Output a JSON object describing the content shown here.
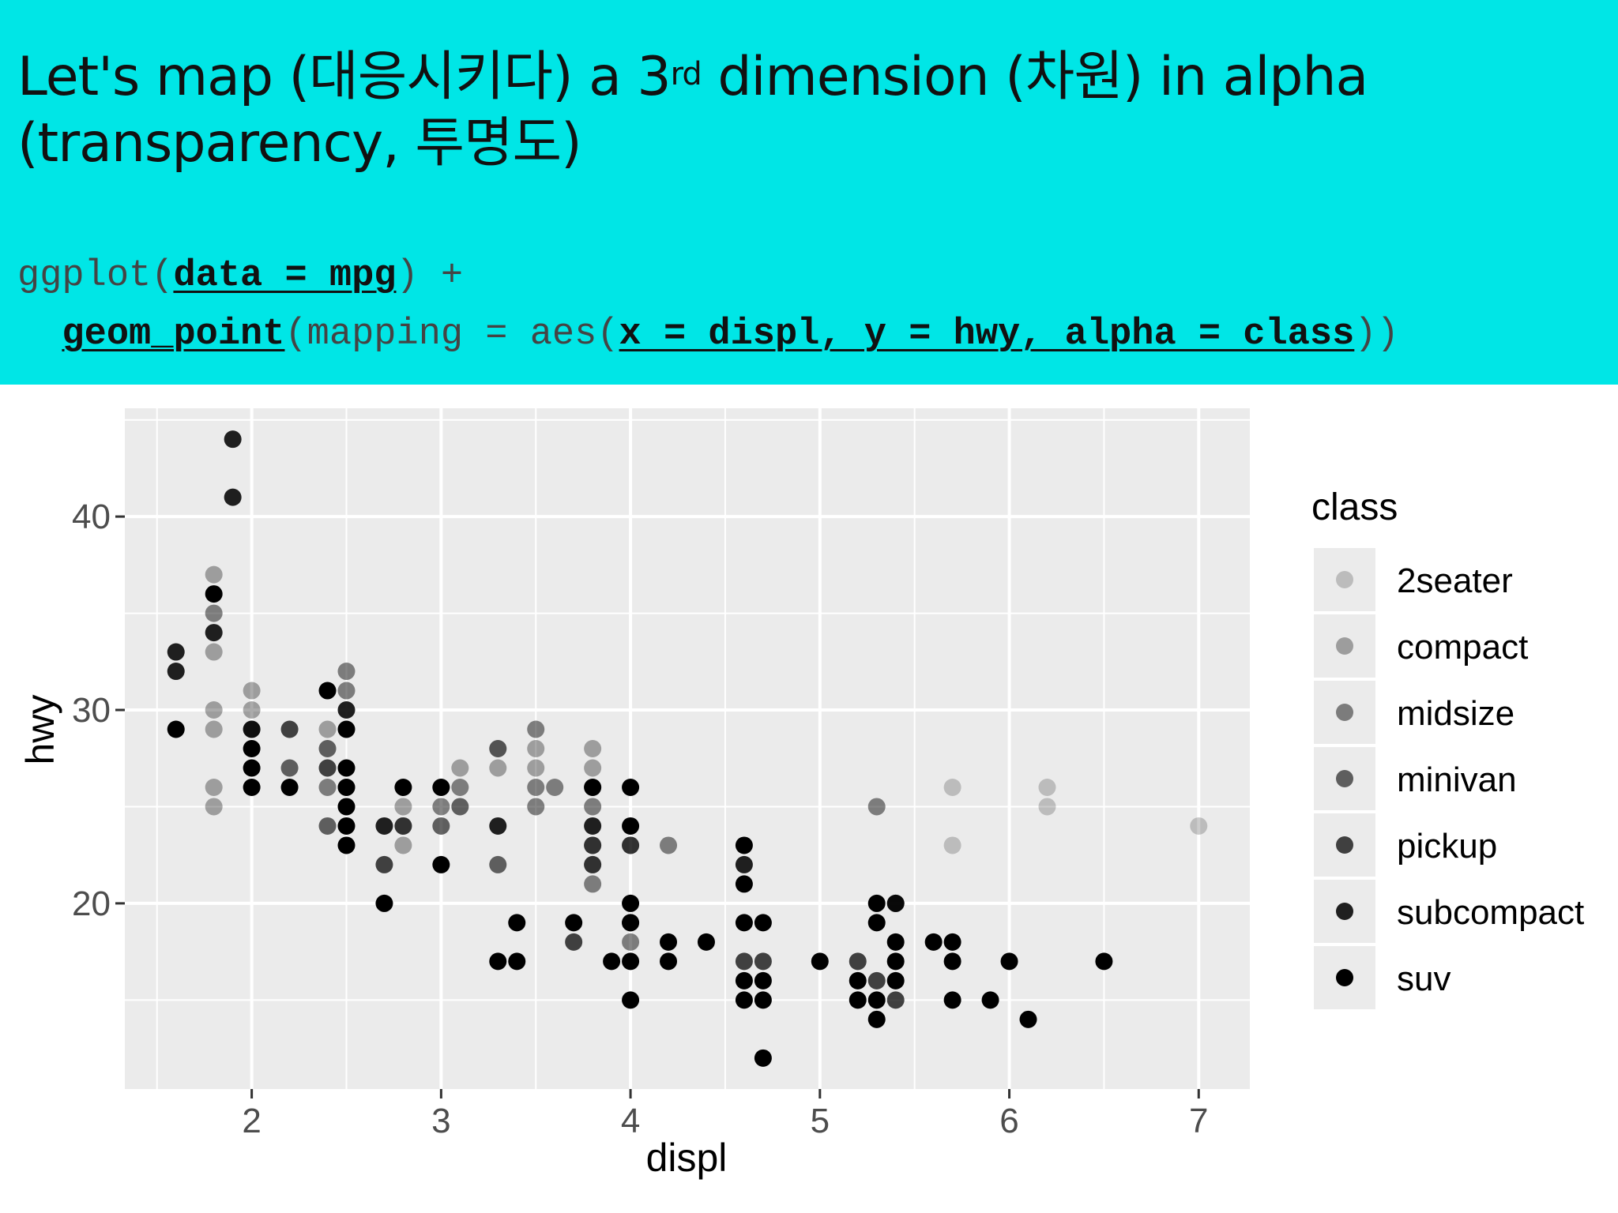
{
  "slide": {
    "title_line1_before_sup": "Let's map (대응시키다) a 3",
    "title_sup": "rd",
    "title_line1_after_sup": " dimension (차원) in alpha",
    "title_line2": "(transparency, 투명도)",
    "code_line1": [
      {
        "t": "ggplot(",
        "b": false
      },
      {
        "t": "data = mpg",
        "b": true
      },
      {
        "t": ") +",
        "b": false
      }
    ],
    "code_line2": [
      {
        "t": "  ",
        "b": false
      },
      {
        "t": "geom_point",
        "b": true
      },
      {
        "t": "(mapping = aes(",
        "b": false
      },
      {
        "t": "x = displ, y = hwy, alpha = class",
        "b": true
      },
      {
        "t": "))",
        "b": false
      }
    ]
  },
  "colors": {
    "header_bg": "#00e6e6",
    "panel_bg": "#ebebeb",
    "grid": "#ffffff",
    "point": "#000000",
    "axis_text": "#4d4d4d"
  },
  "chart_data": {
    "type": "scatter",
    "xlabel": "displ",
    "ylabel": "hwy",
    "xlim": [
      1.33,
      7.27
    ],
    "ylim": [
      10.4,
      45.6
    ],
    "xticks": [
      2,
      3,
      4,
      5,
      6,
      7
    ],
    "yticks": [
      20,
      30,
      40
    ],
    "grid": true,
    "legend": {
      "title": "class",
      "position": "right",
      "entries": [
        {
          "name": "2seater",
          "alpha": 0.2
        },
        {
          "name": "compact",
          "alpha": 0.33
        },
        {
          "name": "midsize",
          "alpha": 0.47
        },
        {
          "name": "minivan",
          "alpha": 0.6
        },
        {
          "name": "pickup",
          "alpha": 0.73
        },
        {
          "name": "subcompact",
          "alpha": 0.87
        },
        {
          "name": "suv",
          "alpha": 1.0
        }
      ]
    },
    "series": [
      {
        "name": "2seater",
        "alpha": 0.2,
        "points": [
          [
            5.7,
            26
          ],
          [
            5.7,
            23
          ],
          [
            6.2,
            26
          ],
          [
            6.2,
            25
          ],
          [
            7.0,
            24
          ]
        ]
      },
      {
        "name": "compact",
        "alpha": 0.33,
        "points": [
          [
            1.8,
            29
          ],
          [
            1.8,
            30
          ],
          [
            1.8,
            33
          ],
          [
            1.8,
            26
          ],
          [
            1.8,
            25
          ],
          [
            1.8,
            37
          ],
          [
            2.0,
            31
          ],
          [
            2.0,
            30
          ],
          [
            2.4,
            29
          ],
          [
            2.5,
            26
          ],
          [
            2.8,
            25
          ],
          [
            2.8,
            23
          ],
          [
            3.0,
            26
          ],
          [
            3.1,
            27
          ],
          [
            3.3,
            27
          ],
          [
            3.3,
            28
          ],
          [
            3.5,
            27
          ],
          [
            3.5,
            28
          ],
          [
            3.8,
            27
          ],
          [
            3.8,
            28
          ]
        ]
      },
      {
        "name": "midsize",
        "alpha": 0.47,
        "points": [
          [
            1.8,
            35
          ],
          [
            2.0,
            29
          ],
          [
            2.4,
            26
          ],
          [
            2.5,
            31
          ],
          [
            2.5,
            32
          ],
          [
            2.8,
            24
          ],
          [
            3.0,
            25
          ],
          [
            3.1,
            26
          ],
          [
            3.3,
            28
          ],
          [
            3.5,
            26
          ],
          [
            3.5,
            29
          ],
          [
            3.5,
            25
          ],
          [
            3.6,
            26
          ],
          [
            3.8,
            26
          ],
          [
            3.8,
            25
          ],
          [
            3.8,
            21
          ],
          [
            3.8,
            22
          ],
          [
            3.8,
            23
          ],
          [
            4.0,
            23
          ],
          [
            4.0,
            18
          ],
          [
            4.2,
            23
          ],
          [
            5.3,
            25
          ]
        ]
      },
      {
        "name": "minivan",
        "alpha": 0.6,
        "points": [
          [
            2.2,
            27
          ],
          [
            2.4,
            24
          ],
          [
            2.4,
            28
          ],
          [
            2.8,
            24
          ],
          [
            3.0,
            24
          ],
          [
            3.1,
            25
          ],
          [
            3.3,
            22
          ],
          [
            3.8,
            23
          ],
          [
            3.8,
            22
          ],
          [
            4.0,
            23
          ]
        ]
      },
      {
        "name": "pickup",
        "alpha": 0.73,
        "points": [
          [
            2.2,
            29
          ],
          [
            2.4,
            27
          ],
          [
            2.7,
            22
          ],
          [
            3.7,
            18
          ],
          [
            4.0,
            19
          ],
          [
            4.6,
            17
          ],
          [
            4.7,
            17
          ],
          [
            5.2,
            17
          ],
          [
            5.4,
            20
          ],
          [
            5.4,
            15
          ],
          [
            5.3,
            16
          ]
        ]
      },
      {
        "name": "subcompact",
        "alpha": 0.87,
        "points": [
          [
            1.6,
            33
          ],
          [
            1.6,
            32
          ],
          [
            1.8,
            34
          ],
          [
            1.9,
            44
          ],
          [
            1.9,
            41
          ],
          [
            2.0,
            29
          ],
          [
            2.5,
            30
          ],
          [
            2.7,
            24
          ],
          [
            3.3,
            24
          ],
          [
            3.8,
            24
          ],
          [
            4.6,
            22
          ],
          [
            5.4,
            20
          ]
        ]
      },
      {
        "name": "suv",
        "alpha": 1.0,
        "points": [
          [
            1.6,
            29
          ],
          [
            1.8,
            36
          ],
          [
            2.0,
            26
          ],
          [
            2.0,
            27
          ],
          [
            2.0,
            28
          ],
          [
            2.2,
            26
          ],
          [
            2.4,
            31
          ],
          [
            2.5,
            29
          ],
          [
            2.5,
            26
          ],
          [
            2.5,
            25
          ],
          [
            2.5,
            24
          ],
          [
            2.5,
            23
          ],
          [
            2.5,
            27
          ],
          [
            2.7,
            20
          ],
          [
            2.8,
            26
          ],
          [
            3.0,
            22
          ],
          [
            3.0,
            26
          ],
          [
            3.3,
            17
          ],
          [
            3.4,
            17
          ],
          [
            3.4,
            19
          ],
          [
            3.7,
            19
          ],
          [
            3.8,
            26
          ],
          [
            3.9,
            17
          ],
          [
            4.0,
            26
          ],
          [
            4.0,
            24
          ],
          [
            4.0,
            20
          ],
          [
            4.0,
            19
          ],
          [
            4.0,
            17
          ],
          [
            4.0,
            15
          ],
          [
            4.2,
            18
          ],
          [
            4.2,
            17
          ],
          [
            4.4,
            18
          ],
          [
            4.6,
            23
          ],
          [
            4.6,
            21
          ],
          [
            4.6,
            19
          ],
          [
            4.6,
            16
          ],
          [
            4.6,
            15
          ],
          [
            4.7,
            19
          ],
          [
            4.7,
            16
          ],
          [
            4.7,
            15
          ],
          [
            4.7,
            12
          ],
          [
            5.0,
            17
          ],
          [
            5.2,
            15
          ],
          [
            5.2,
            16
          ],
          [
            5.3,
            19
          ],
          [
            5.3,
            20
          ],
          [
            5.3,
            14
          ],
          [
            5.3,
            15
          ],
          [
            5.4,
            18
          ],
          [
            5.4,
            17
          ],
          [
            5.4,
            16
          ],
          [
            5.6,
            18
          ],
          [
            5.7,
            18
          ],
          [
            5.7,
            17
          ],
          [
            5.7,
            15
          ],
          [
            5.9,
            15
          ],
          [
            6.0,
            17
          ],
          [
            6.1,
            14
          ],
          [
            6.5,
            17
          ]
        ]
      }
    ]
  }
}
